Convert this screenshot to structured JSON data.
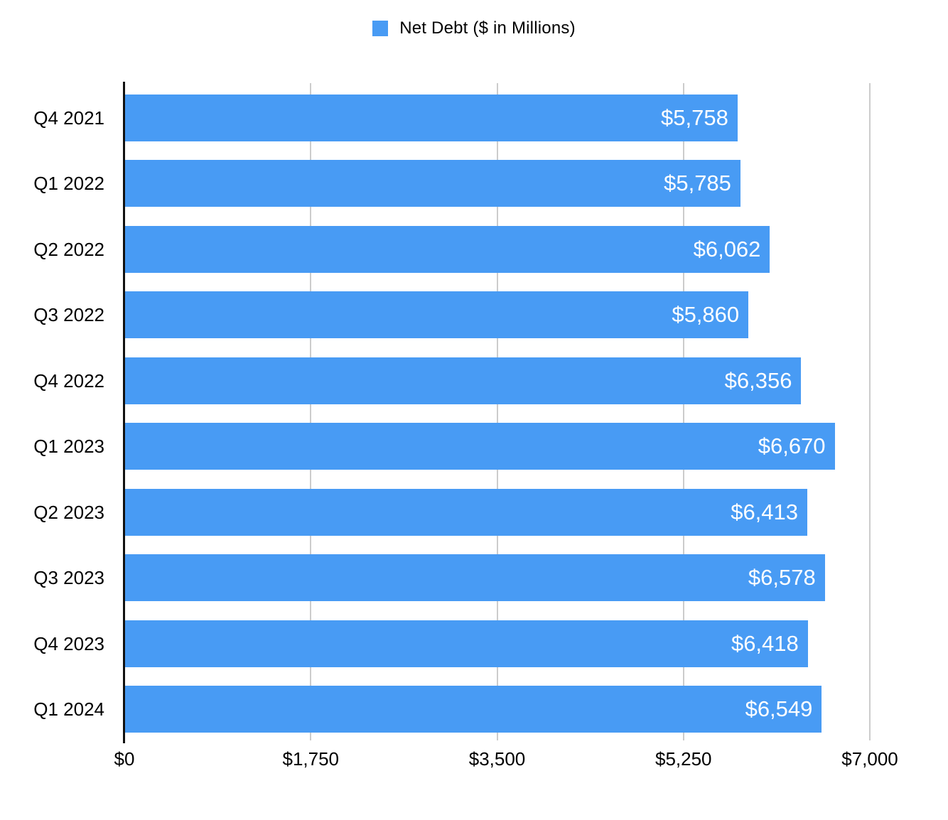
{
  "legend": {
    "label": "Net Debt ($ in Millions)"
  },
  "chart_data": {
    "type": "bar",
    "orientation": "horizontal",
    "title": "Net Debt ($ in Millions)",
    "categories": [
      "Q4 2021",
      "Q1 2022",
      "Q2 2022",
      "Q3 2022",
      "Q4 2022",
      "Q1 2023",
      "Q2 2023",
      "Q3 2023",
      "Q4 2023",
      "Q1 2024"
    ],
    "values": [
      5758,
      5785,
      6062,
      5860,
      6356,
      6670,
      6413,
      6578,
      6418,
      6549
    ],
    "value_labels": [
      "$5,758",
      "$5,785",
      "$6,062",
      "$5,860",
      "$6,356",
      "$6,670",
      "$6,413",
      "$6,578",
      "$6,418",
      "$6,549"
    ],
    "xlabel": "",
    "ylabel": "",
    "xlim": [
      0,
      7000
    ],
    "x_ticks": [
      0,
      1750,
      3500,
      5250,
      7000
    ],
    "x_tick_labels": [
      "$0",
      "$1,750",
      "$3,500",
      "$5,250",
      "$7,000"
    ],
    "grid": true,
    "legend_position": "top",
    "bar_color": "#489bf4",
    "gridline_color": "#cccccc",
    "value_label_color": "#ffffff",
    "axis_color": "#111111"
  }
}
